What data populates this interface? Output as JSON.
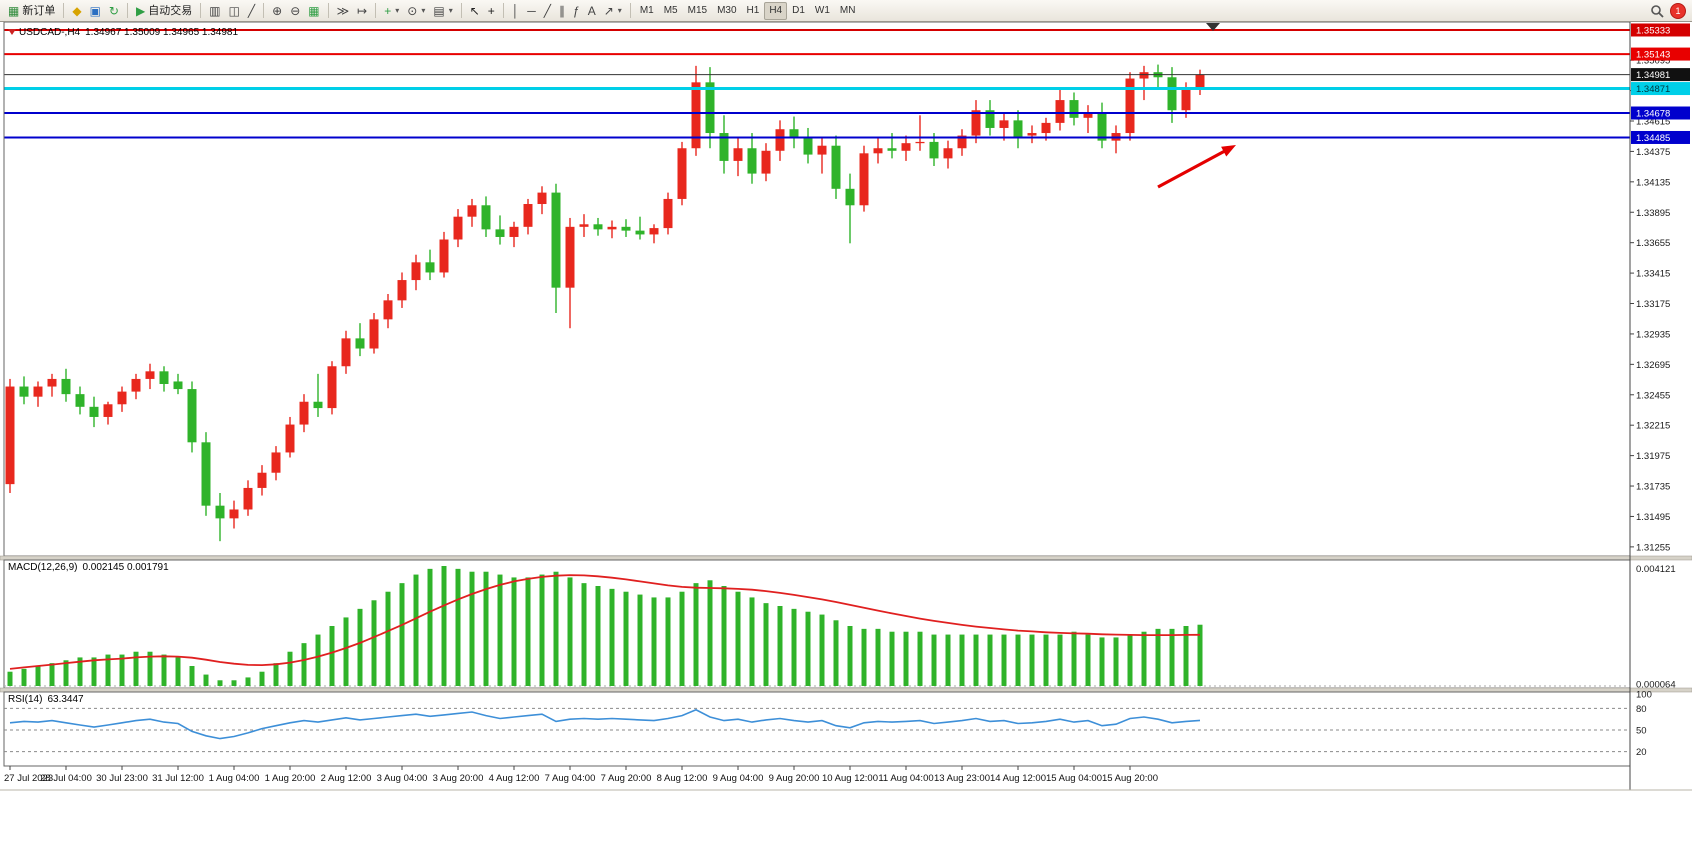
{
  "toolbar": {
    "notification_count": "1",
    "timeframes": [
      "M1",
      "M5",
      "M15",
      "M30",
      "H1",
      "H4",
      "D1",
      "W1",
      "MN"
    ],
    "active_timeframe": "H4",
    "groups": [
      {
        "name": "trade",
        "items": [
          {
            "name": "new-order",
            "glyph": "▦",
            "color": "#2e8b3a",
            "label": "新订单"
          }
        ]
      },
      {
        "name": "windows",
        "items": [
          {
            "name": "profiles",
            "glyph": "◆",
            "color": "#d7a300"
          },
          {
            "name": "data-window",
            "glyph": "▣",
            "color": "#2b6fc2"
          },
          {
            "name": "refresh",
            "glyph": "↻",
            "color": "#2f9e44"
          }
        ]
      },
      {
        "name": "autotrade",
        "items": [
          {
            "name": "auto-trading",
            "glyph": "▶",
            "color": "#2f9e44",
            "label": "自动交易"
          }
        ]
      },
      {
        "name": "chart-type",
        "items": [
          {
            "name": "bar-chart",
            "glyph": "▥",
            "color": "#444"
          },
          {
            "name": "candlestick-chart",
            "glyph": "◫",
            "color": "#444"
          },
          {
            "name": "line-chart",
            "glyph": "╱",
            "color": "#444"
          }
        ]
      },
      {
        "name": "zoom",
        "items": [
          {
            "name": "zoom-in",
            "glyph": "⊕",
            "color": "#444"
          },
          {
            "name": "zoom-out",
            "glyph": "⊖",
            "color": "#444"
          },
          {
            "name": "tile-windows",
            "glyph": "▦",
            "color": "#2f9e44"
          }
        ]
      },
      {
        "name": "scroll",
        "items": [
          {
            "name": "auto-scroll",
            "glyph": "≫",
            "color": "#444"
          },
          {
            "name": "chart-shift",
            "glyph": "↦",
            "color": "#444"
          }
        ]
      },
      {
        "name": "insert",
        "items": [
          {
            "name": "indicators",
            "glyph": "+",
            "color": "#2f9e44",
            "dropdown": true
          },
          {
            "name": "periods",
            "glyph": "⊙",
            "color": "#444",
            "dropdown": true
          },
          {
            "name": "templates",
            "glyph": "▤",
            "color": "#444",
            "dropdown": true
          }
        ]
      },
      {
        "name": "pointer",
        "items": [
          {
            "name": "cursor",
            "glyph": "↖",
            "color": "#222"
          },
          {
            "name": "crosshair",
            "glyph": "+",
            "color": "#222"
          }
        ]
      },
      {
        "name": "objects",
        "items": [
          {
            "name": "vertical-line",
            "glyph": "│",
            "color": "#444"
          },
          {
            "name": "horizontal-line",
            "glyph": "─",
            "color": "#444"
          },
          {
            "name": "trendline",
            "glyph": "╱",
            "color": "#444"
          },
          {
            "name": "equidistant-channel",
            "glyph": "∥",
            "color": "#444"
          },
          {
            "name": "fibonacci",
            "glyph": "ƒ",
            "color": "#444"
          },
          {
            "name": "text",
            "glyph": "A",
            "color": "#444"
          },
          {
            "name": "arrows",
            "glyph": "↗",
            "color": "#444",
            "dropdown": true
          }
        ]
      }
    ]
  },
  "chart": {
    "symbol_period": "USDCAD-,H4",
    "ohlc": "1.34967 1.35009 1.34965 1.34981"
  },
  "indicators": {
    "macd_name": "MACD(12,26,9)",
    "macd_values": "0.002145 0.001791",
    "rsi_name": "RSI(14)",
    "rsi_value": "63.3447"
  },
  "chart_data": {
    "type": "candlestick+indicators",
    "symbol": "USDCAD-",
    "timeframe": "H4",
    "colors": {
      "bull": "#e8281e",
      "bear": "#2fb32a",
      "macd_hist": "#2fb32a",
      "macd_signal": "#e02020",
      "rsi": "#3d8fd8"
    },
    "candles": [
      [
        1.3175,
        1.3258,
        1.3168,
        1.3252
      ],
      [
        1.3252,
        1.326,
        1.3238,
        1.3244
      ],
      [
        1.3244,
        1.3256,
        1.3236,
        1.3252
      ],
      [
        1.3252,
        1.3262,
        1.3244,
        1.3258
      ],
      [
        1.3258,
        1.3266,
        1.324,
        1.3246
      ],
      [
        1.3246,
        1.3252,
        1.323,
        1.3236
      ],
      [
        1.3236,
        1.3244,
        1.322,
        1.3228
      ],
      [
        1.3228,
        1.324,
        1.3222,
        1.3238
      ],
      [
        1.3238,
        1.3252,
        1.3232,
        1.3248
      ],
      [
        1.3248,
        1.3262,
        1.3242,
        1.3258
      ],
      [
        1.3258,
        1.327,
        1.325,
        1.3264
      ],
      [
        1.3264,
        1.3268,
        1.3248,
        1.3254
      ],
      [
        1.3256,
        1.3262,
        1.3246,
        1.325
      ],
      [
        1.325,
        1.3256,
        1.32,
        1.3208
      ],
      [
        1.3208,
        1.3216,
        1.315,
        1.3158
      ],
      [
        1.3158,
        1.3168,
        1.313,
        1.3148
      ],
      [
        1.3148,
        1.3162,
        1.314,
        1.3155
      ],
      [
        1.3155,
        1.3178,
        1.315,
        1.3172
      ],
      [
        1.3172,
        1.319,
        1.3166,
        1.3184
      ],
      [
        1.3184,
        1.3205,
        1.3178,
        1.32
      ],
      [
        1.32,
        1.3228,
        1.3196,
        1.3222
      ],
      [
        1.3222,
        1.3246,
        1.3216,
        1.324
      ],
      [
        1.324,
        1.3262,
        1.3228,
        1.3235
      ],
      [
        1.3235,
        1.3272,
        1.323,
        1.3268
      ],
      [
        1.3268,
        1.3296,
        1.3262,
        1.329
      ],
      [
        1.329,
        1.3302,
        1.3276,
        1.3282
      ],
      [
        1.3282,
        1.331,
        1.3278,
        1.3305
      ],
      [
        1.3305,
        1.3325,
        1.3298,
        1.332
      ],
      [
        1.332,
        1.3342,
        1.3314,
        1.3336
      ],
      [
        1.3336,
        1.3356,
        1.3328,
        1.335
      ],
      [
        1.335,
        1.336,
        1.3336,
        1.3342
      ],
      [
        1.3342,
        1.3374,
        1.3338,
        1.3368
      ],
      [
        1.3368,
        1.3392,
        1.3362,
        1.3386
      ],
      [
        1.3386,
        1.34,
        1.3378,
        1.3395
      ],
      [
        1.3395,
        1.3402,
        1.337,
        1.3376
      ],
      [
        1.3376,
        1.3387,
        1.3364,
        1.337
      ],
      [
        1.337,
        1.3382,
        1.3362,
        1.3378
      ],
      [
        1.3378,
        1.34,
        1.3372,
        1.3396
      ],
      [
        1.3396,
        1.341,
        1.3388,
        1.3405
      ],
      [
        1.3405,
        1.3412,
        1.331,
        1.333
      ],
      [
        1.333,
        1.3385,
        1.3298,
        1.3378
      ],
      [
        1.3378,
        1.3388,
        1.337,
        1.338
      ],
      [
        1.338,
        1.3385,
        1.3371,
        1.3376
      ],
      [
        1.3376,
        1.3383,
        1.3369,
        1.3378
      ],
      [
        1.3378,
        1.3384,
        1.337,
        1.3375
      ],
      [
        1.3375,
        1.3386,
        1.3368,
        1.3372
      ],
      [
        1.3372,
        1.338,
        1.3365,
        1.3377
      ],
      [
        1.3377,
        1.3405,
        1.3372,
        1.34
      ],
      [
        1.34,
        1.3445,
        1.3395,
        1.344
      ],
      [
        1.344,
        1.3505,
        1.3434,
        1.3492
      ],
      [
        1.3492,
        1.3504,
        1.344,
        1.3452
      ],
      [
        1.3452,
        1.3466,
        1.342,
        1.343
      ],
      [
        1.343,
        1.3448,
        1.3418,
        1.344
      ],
      [
        1.344,
        1.3452,
        1.3412,
        1.342
      ],
      [
        1.342,
        1.3444,
        1.3414,
        1.3438
      ],
      [
        1.3438,
        1.3462,
        1.343,
        1.3455
      ],
      [
        1.3455,
        1.3465,
        1.344,
        1.3448
      ],
      [
        1.3448,
        1.3456,
        1.3428,
        1.3435
      ],
      [
        1.3435,
        1.3448,
        1.342,
        1.3442
      ],
      [
        1.3442,
        1.345,
        1.34,
        1.3408
      ],
      [
        1.3408,
        1.342,
        1.3365,
        1.3395
      ],
      [
        1.3395,
        1.3442,
        1.339,
        1.3436
      ],
      [
        1.3436,
        1.3448,
        1.3428,
        1.344
      ],
      [
        1.344,
        1.3452,
        1.3432,
        1.3438
      ],
      [
        1.3438,
        1.345,
        1.343,
        1.3444
      ],
      [
        1.3444,
        1.3466,
        1.3438,
        1.3445
      ],
      [
        1.3445,
        1.3452,
        1.3426,
        1.3432
      ],
      [
        1.3432,
        1.3446,
        1.3424,
        1.344
      ],
      [
        1.344,
        1.3455,
        1.3434,
        1.345
      ],
      [
        1.345,
        1.3478,
        1.3444,
        1.347
      ],
      [
        1.347,
        1.3478,
        1.345,
        1.3456
      ],
      [
        1.3456,
        1.3468,
        1.3446,
        1.3462
      ],
      [
        1.3462,
        1.347,
        1.344,
        1.3448
      ],
      [
        1.345,
        1.3458,
        1.3444,
        1.3452
      ],
      [
        1.3452,
        1.3464,
        1.3446,
        1.346
      ],
      [
        1.346,
        1.3486,
        1.3454,
        1.3478
      ],
      [
        1.3478,
        1.3484,
        1.3458,
        1.3464
      ],
      [
        1.3464,
        1.3474,
        1.3452,
        1.3468
      ],
      [
        1.3468,
        1.3476,
        1.344,
        1.3446
      ],
      [
        1.3446,
        1.3458,
        1.3436,
        1.3452
      ],
      [
        1.3452,
        1.35,
        1.3446,
        1.3495
      ],
      [
        1.3495,
        1.3505,
        1.3478,
        1.35
      ],
      [
        1.35,
        1.3506,
        1.3488,
        1.3496
      ],
      [
        1.3496,
        1.3504,
        1.346,
        1.347
      ],
      [
        1.347,
        1.3492,
        1.3464,
        1.3488
      ],
      [
        1.3488,
        1.3502,
        1.3482,
        1.34981
      ]
    ],
    "time_labels": [
      "27 Jul 2023",
      "28 Jul 04:00",
      "30 Jul 23:00",
      "31 Jul 12:00",
      "1 Aug 04:00",
      "1 Aug 20:00",
      "2 Aug 12:00",
      "3 Aug 04:00",
      "3 Aug 20:00",
      "4 Aug 12:00",
      "7 Aug 04:00",
      "7 Aug 20:00",
      "8 Aug 12:00",
      "9 Aug 04:00",
      "9 Aug 20:00",
      "10 Aug 12:00",
      "11 Aug 04:00",
      "13 Aug 23:00",
      "14 Aug 12:00",
      "15 Aug 04:00",
      "15 Aug 20:00"
    ],
    "price_ticks": [
      1.35095,
      1.34855,
      1.34615,
      1.34375,
      1.34135,
      1.33895,
      1.33655,
      1.33415,
      1.33175,
      1.32935,
      1.32695,
      1.32455,
      1.32215,
      1.31975,
      1.31735,
      1.31495,
      1.31255
    ],
    "hlines": [
      {
        "price": 1.35333,
        "label": "1.35333",
        "color": "#d40000",
        "width": 2,
        "tag_bg": "#d40000",
        "tag_fg": "#ffffff"
      },
      {
        "price": 1.35143,
        "label": "1.35143",
        "color": "#e80000",
        "width": 2,
        "tag_bg": "#e80000",
        "tag_fg": "#ffffff"
      },
      {
        "price": 1.34871,
        "label": "1.34871",
        "color": "#00cfe8",
        "width": 3,
        "tag_bg": "#00cfe8",
        "tag_fg": "#00353c"
      },
      {
        "price": 1.34678,
        "label": "1.34678",
        "color": "#0000cd",
        "width": 2,
        "tag_bg": "#0000cd",
        "tag_fg": "#ffffff"
      },
      {
        "price": 1.34485,
        "label": "1.34485",
        "color": "#0000cd",
        "width": 2,
        "tag_bg": "#0000cd",
        "tag_fg": "#ffffff"
      }
    ],
    "current": {
      "price": 1.34981,
      "label": "1.34981",
      "color": "#333333",
      "tag_bg": "#111111",
      "tag_fg": "#ffffff"
    },
    "macd": {
      "histogram": [
        0.0005,
        0.0006,
        0.0007,
        0.0008,
        0.0009,
        0.001,
        0.001,
        0.0011,
        0.0011,
        0.0012,
        0.0012,
        0.0011,
        0.001,
        0.0007,
        0.0004,
        0.0002,
        0.0002,
        0.0003,
        0.0005,
        0.0008,
        0.0012,
        0.0015,
        0.0018,
        0.0021,
        0.0024,
        0.0027,
        0.003,
        0.0033,
        0.0036,
        0.0039,
        0.0041,
        0.0042,
        0.0041,
        0.004,
        0.004,
        0.0039,
        0.0038,
        0.0038,
        0.0039,
        0.004,
        0.0038,
        0.0036,
        0.0035,
        0.0034,
        0.0033,
        0.0032,
        0.0031,
        0.0031,
        0.0033,
        0.0036,
        0.0037,
        0.0035,
        0.0033,
        0.0031,
        0.0029,
        0.0028,
        0.0027,
        0.0026,
        0.0025,
        0.0023,
        0.0021,
        0.002,
        0.002,
        0.0019,
        0.0019,
        0.0019,
        0.0018,
        0.0018,
        0.0018,
        0.0018,
        0.0018,
        0.0018,
        0.0018,
        0.0018,
        0.0018,
        0.0018,
        0.0019,
        0.0018,
        0.0017,
        0.0017,
        0.0018,
        0.0019,
        0.002,
        0.002,
        0.0021,
        0.002145
      ],
      "signal": [
        0.0006,
        0.00065,
        0.0007,
        0.00075,
        0.0008,
        0.00085,
        0.0009,
        0.00093,
        0.00096,
        0.001,
        0.00103,
        0.00104,
        0.00103,
        0.00099,
        0.00092,
        0.00084,
        0.00078,
        0.00074,
        0.00073,
        0.00076,
        0.00082,
        0.00091,
        0.00103,
        0.00117,
        0.00133,
        0.00151,
        0.00171,
        0.00192,
        0.00214,
        0.00237,
        0.0026,
        0.00282,
        0.00303,
        0.00322,
        0.00339,
        0.00354,
        0.00366,
        0.00375,
        0.00382,
        0.00386,
        0.00388,
        0.00387,
        0.00384,
        0.00379,
        0.00373,
        0.00366,
        0.00359,
        0.00352,
        0.00347,
        0.00344,
        0.00343,
        0.00342,
        0.0034,
        0.00337,
        0.00332,
        0.00326,
        0.00319,
        0.00311,
        0.00303,
        0.00294,
        0.00284,
        0.00274,
        0.00264,
        0.00254,
        0.00245,
        0.00236,
        0.00228,
        0.00221,
        0.00214,
        0.00208,
        0.00203,
        0.00198,
        0.00194,
        0.00191,
        0.00188,
        0.00186,
        0.00184,
        0.00183,
        0.00181,
        0.0018,
        0.00179,
        0.00178,
        0.00178,
        0.00178,
        0.00179,
        0.001791
      ],
      "last_main": 0.002145,
      "last_signal": 0.001791,
      "axis_labels": [
        {
          "value": 0.004121,
          "label": "0.004121"
        },
        {
          "value": 6.4e-05,
          "label": "0.000064"
        }
      ]
    },
    "rsi": {
      "values": [
        60,
        62,
        61,
        63,
        60,
        57,
        54,
        57,
        60,
        63,
        65,
        61,
        59,
        48,
        42,
        38,
        41,
        46,
        52,
        56,
        60,
        63,
        61,
        64,
        67,
        64,
        66,
        68,
        70,
        72,
        69,
        71,
        73,
        75,
        70,
        66,
        68,
        70,
        72,
        62,
        65,
        66,
        65,
        66,
        65,
        64,
        63,
        66,
        70,
        78,
        68,
        63,
        65,
        61,
        64,
        66,
        63,
        61,
        63,
        56,
        53,
        60,
        62,
        61,
        62,
        63,
        59,
        61,
        63,
        66,
        62,
        63,
        59,
        60,
        62,
        65,
        61,
        63,
        56,
        58,
        66,
        68,
        65,
        60,
        62,
        63.3447
      ],
      "last": 63.3447,
      "levels": [
        80,
        50,
        20
      ],
      "axis_labels": [
        {
          "value": 100,
          "label": "100"
        },
        {
          "value": 80,
          "label": "80"
        },
        {
          "value": 50,
          "label": "50"
        },
        {
          "value": 20,
          "label": "20"
        }
      ]
    },
    "arrow": {
      "from": [
        1158,
        187
      ],
      "to": [
        1236,
        145
      ],
      "color": "#e40000"
    }
  }
}
